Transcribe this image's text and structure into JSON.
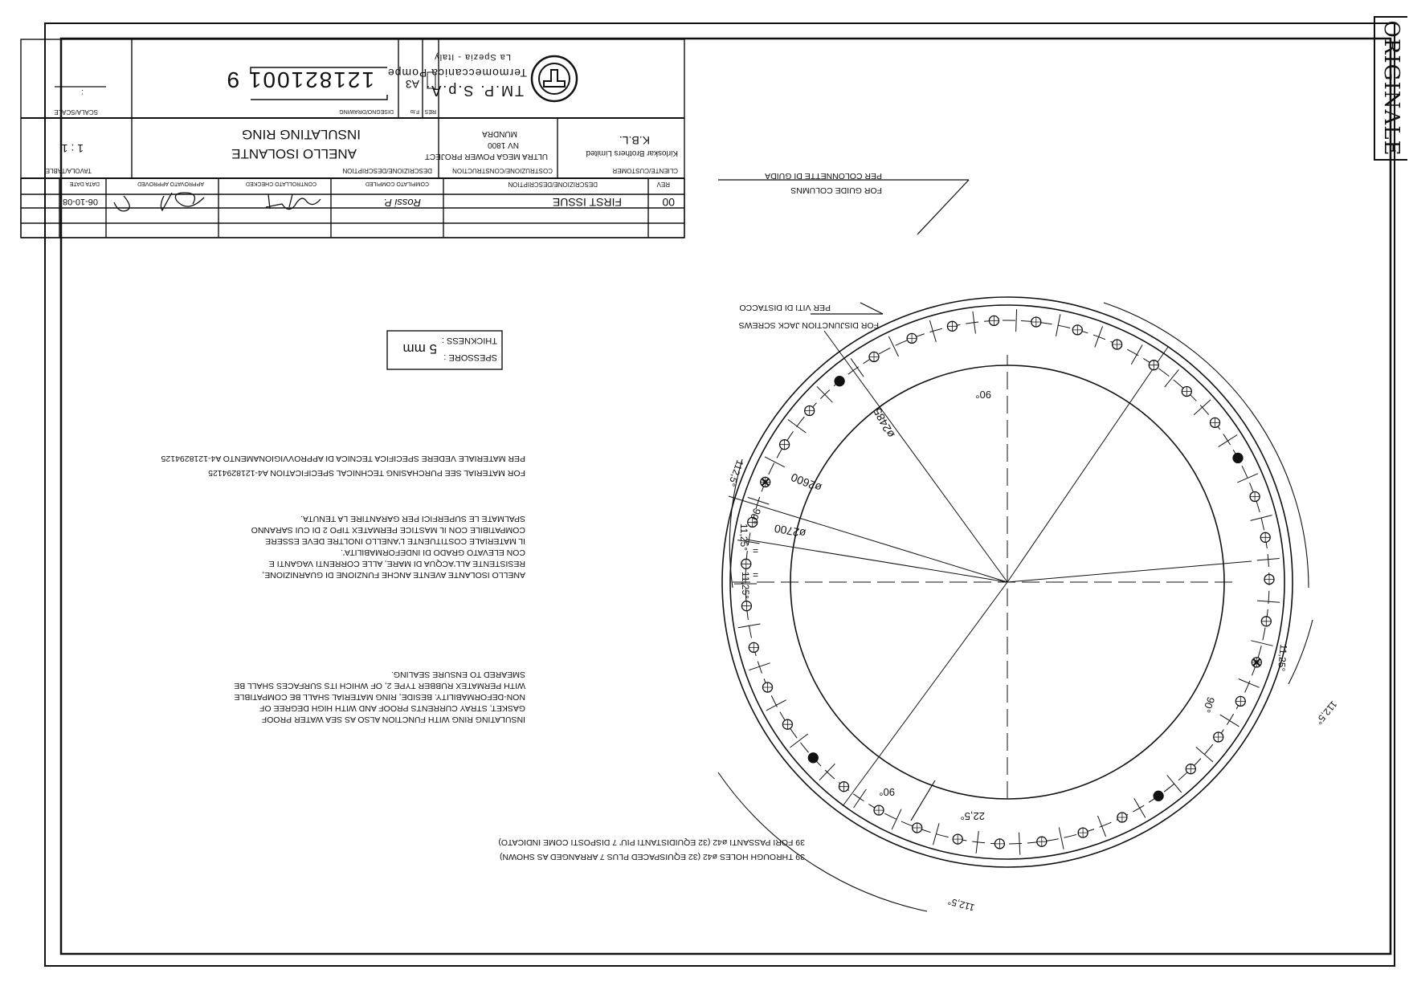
{
  "stamp": {
    "text": "ORIGINALE"
  },
  "title_block": {
    "company": {
      "name": "TM.P. S.p.A.",
      "division": "Termomeccanica Pompe",
      "location": "La Spezia - Italy"
    },
    "drawing": {
      "label": "DISEGNO/DRAWING",
      "number": "121821001 9",
      "format_label": "F.to",
      "format": "A3",
      "res_label": "RES",
      "scale_label": "SCALA/SCALE",
      "scale_value": ":"
    },
    "customer": {
      "label": "CLIENTE/CUSTOMER",
      "line1": "Kirloskar Brothers Limited",
      "line2": "K.B.L."
    },
    "construction": {
      "label": "COSTRUZIONE/CONSTRUCTION",
      "line1": "ULTRA MEGA POWER PROJECT",
      "line2": "NV 1800",
      "line3": "MUNDRA"
    },
    "description": {
      "label": "DESCRIZIONE/DESCRIPTION",
      "line1": "ANELLO ISOLANTE",
      "line2": "INSULATING RING"
    },
    "sheet": {
      "label": "TAVOLA/TABLE",
      "value": "1 : 1"
    },
    "revisions": {
      "headers": [
        "REV",
        "DESCRIZIONE/DESCRIPTION",
        "COMPILATO COMPILED",
        "CONTROLLATO CHECKED",
        "APPROVATO APPROVED",
        "DATA DATE"
      ],
      "rows": [
        {
          "rev": "00",
          "description": "FIRST ISSUE",
          "compiled": "Rossi P.",
          "date": "06-10-08"
        }
      ]
    }
  },
  "thickness": {
    "label_it": "SPESSORE :",
    "label_en": "THICKNESS :",
    "value": "5 mm"
  },
  "material_note": {
    "en": "FOR MATERIAL SEE PURCHASING TECHNICAL SPECIFICATION A4-1218294125",
    "it": "PER MATERIALE VEDERE SPECIFICA TECNICA DI APPROVVIGIONAMENTO A4-1218294125"
  },
  "note_it": [
    "ANELLO ISOLANTE AVENTE ANCHE FUNZIONE DI GUARNIZIONE,",
    "RESISTENTE ALL'ACQUA DI MARE, ALLE CORRENTI VAGANTI E",
    "CON ELEVATO GRADO DI INDEFORMABILITA'.",
    "IL MATERIALE COSTITUENTE L'ANELLO INOLTRE DEVE ESSERE",
    "COMPATIBILE CON IL MASTICE PERMATEX TIPO 2 DI CUI SARANNO",
    "SPALMATE LE SUPERFICI PER GARANTIRE LA TENUTA."
  ],
  "note_en": [
    "INSULATING RING WITH FUNCTION ALSO AS SEA WATER PROOF",
    "GASKET, STRAY CURRENTS PROOF AND WITH HIGH DEGREE OF",
    "NON-DEFORMABILITY. BESIDE, RING MATERIAL SHALL BE COMPATIBLE",
    "WITH PERMATEX RUBBER TYPE 2, OF WHICH ITS SURFACES SHALL BE",
    "SMEARED TO ENSURE SEALING."
  ],
  "callouts": {
    "guide_en": "FOR GUIDE COLUMNS",
    "guide_it": "PER COLONNETTE DI GUIDA",
    "jack_en": "FOR DISJUNCTION JACK SCREWS",
    "jack_it": "PER VITI DI DISTACCO",
    "holes_en": "39 THROUGH HOLES ø42 (32 EQUISPACED PLUS 7 ARRANGED AS SHOWN)",
    "holes_it": "39 FORI PASSANTI ø42 (32 EQUIDISTANTI PIU' 7 DISPOSTI COME INDICATO)"
  },
  "dimensions": {
    "d_outer": "ø2700",
    "d_pitch": "ø2600",
    "d_inner": "ø2485",
    "ang_90": "90°",
    "ang_1125": "11,25°",
    "ang_225": "22,5°",
    "ang_1125b": "112,5°",
    "equal": "="
  }
}
